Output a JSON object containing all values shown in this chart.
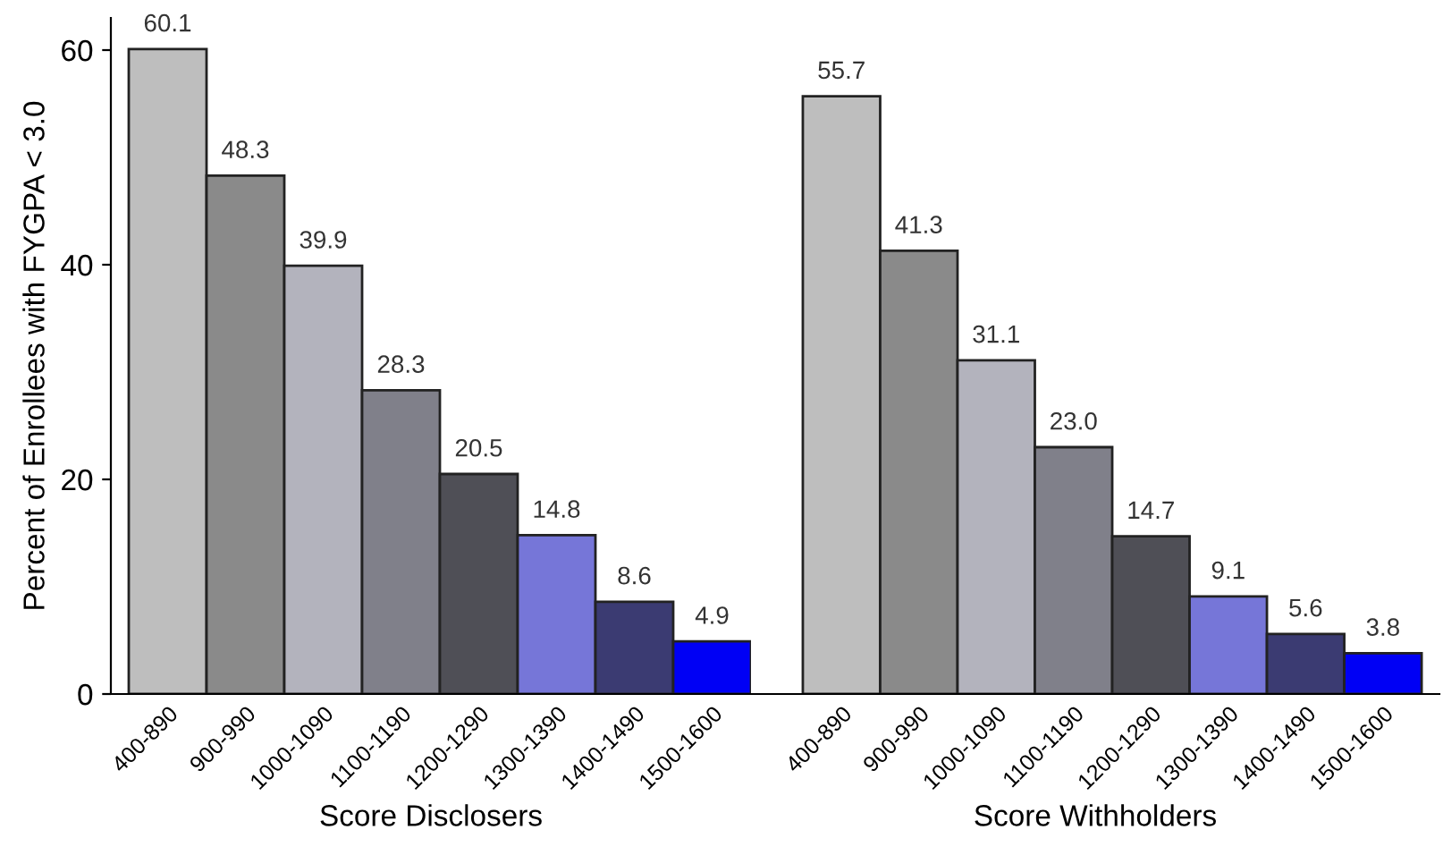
{
  "chart_data": [
    {
      "type": "bar",
      "xlabel": "Score Disclosers",
      "ylabel": "Percent of Enrollees with FYGPA < 3.0",
      "categories": [
        "400-890",
        "900-990",
        "1000-1090",
        "1100-1190",
        "1200-1290",
        "1300-1390",
        "1400-1490",
        "1500-1600"
      ],
      "values": [
        60.1,
        48.3,
        39.9,
        28.3,
        20.5,
        14.8,
        8.6,
        4.9
      ],
      "value_labels": [
        "60.1",
        "48.3",
        "39.9",
        "28.3",
        "20.5",
        "14.8",
        "8.6",
        "4.9"
      ],
      "colors": [
        "#bebebe",
        "#8a8a8a",
        "#b3b3bd",
        "#80808a",
        "#4f4f56",
        "#7676d8",
        "#3b3b72",
        "#0000f5"
      ],
      "ylim": [
        0,
        63
      ],
      "yticks": [
        0,
        20,
        40,
        60
      ]
    },
    {
      "type": "bar",
      "xlabel": "Score Withholders",
      "categories": [
        "400-890",
        "900-990",
        "1000-1090",
        "1100-1190",
        "1200-1290",
        "1300-1390",
        "1400-1490",
        "1500-1600"
      ],
      "values": [
        55.7,
        41.3,
        31.1,
        23.0,
        14.7,
        9.1,
        5.6,
        3.8
      ],
      "value_labels": [
        "55.7",
        "41.3",
        "31.1",
        "23.0",
        "14.7",
        "9.1",
        "5.6",
        "3.8"
      ],
      "colors": [
        "#bebebe",
        "#8a8a8a",
        "#b3b3bd",
        "#80808a",
        "#4f4f56",
        "#7676d8",
        "#3b3b72",
        "#0000f5"
      ],
      "tick_labels": "x"
    }
  ]
}
